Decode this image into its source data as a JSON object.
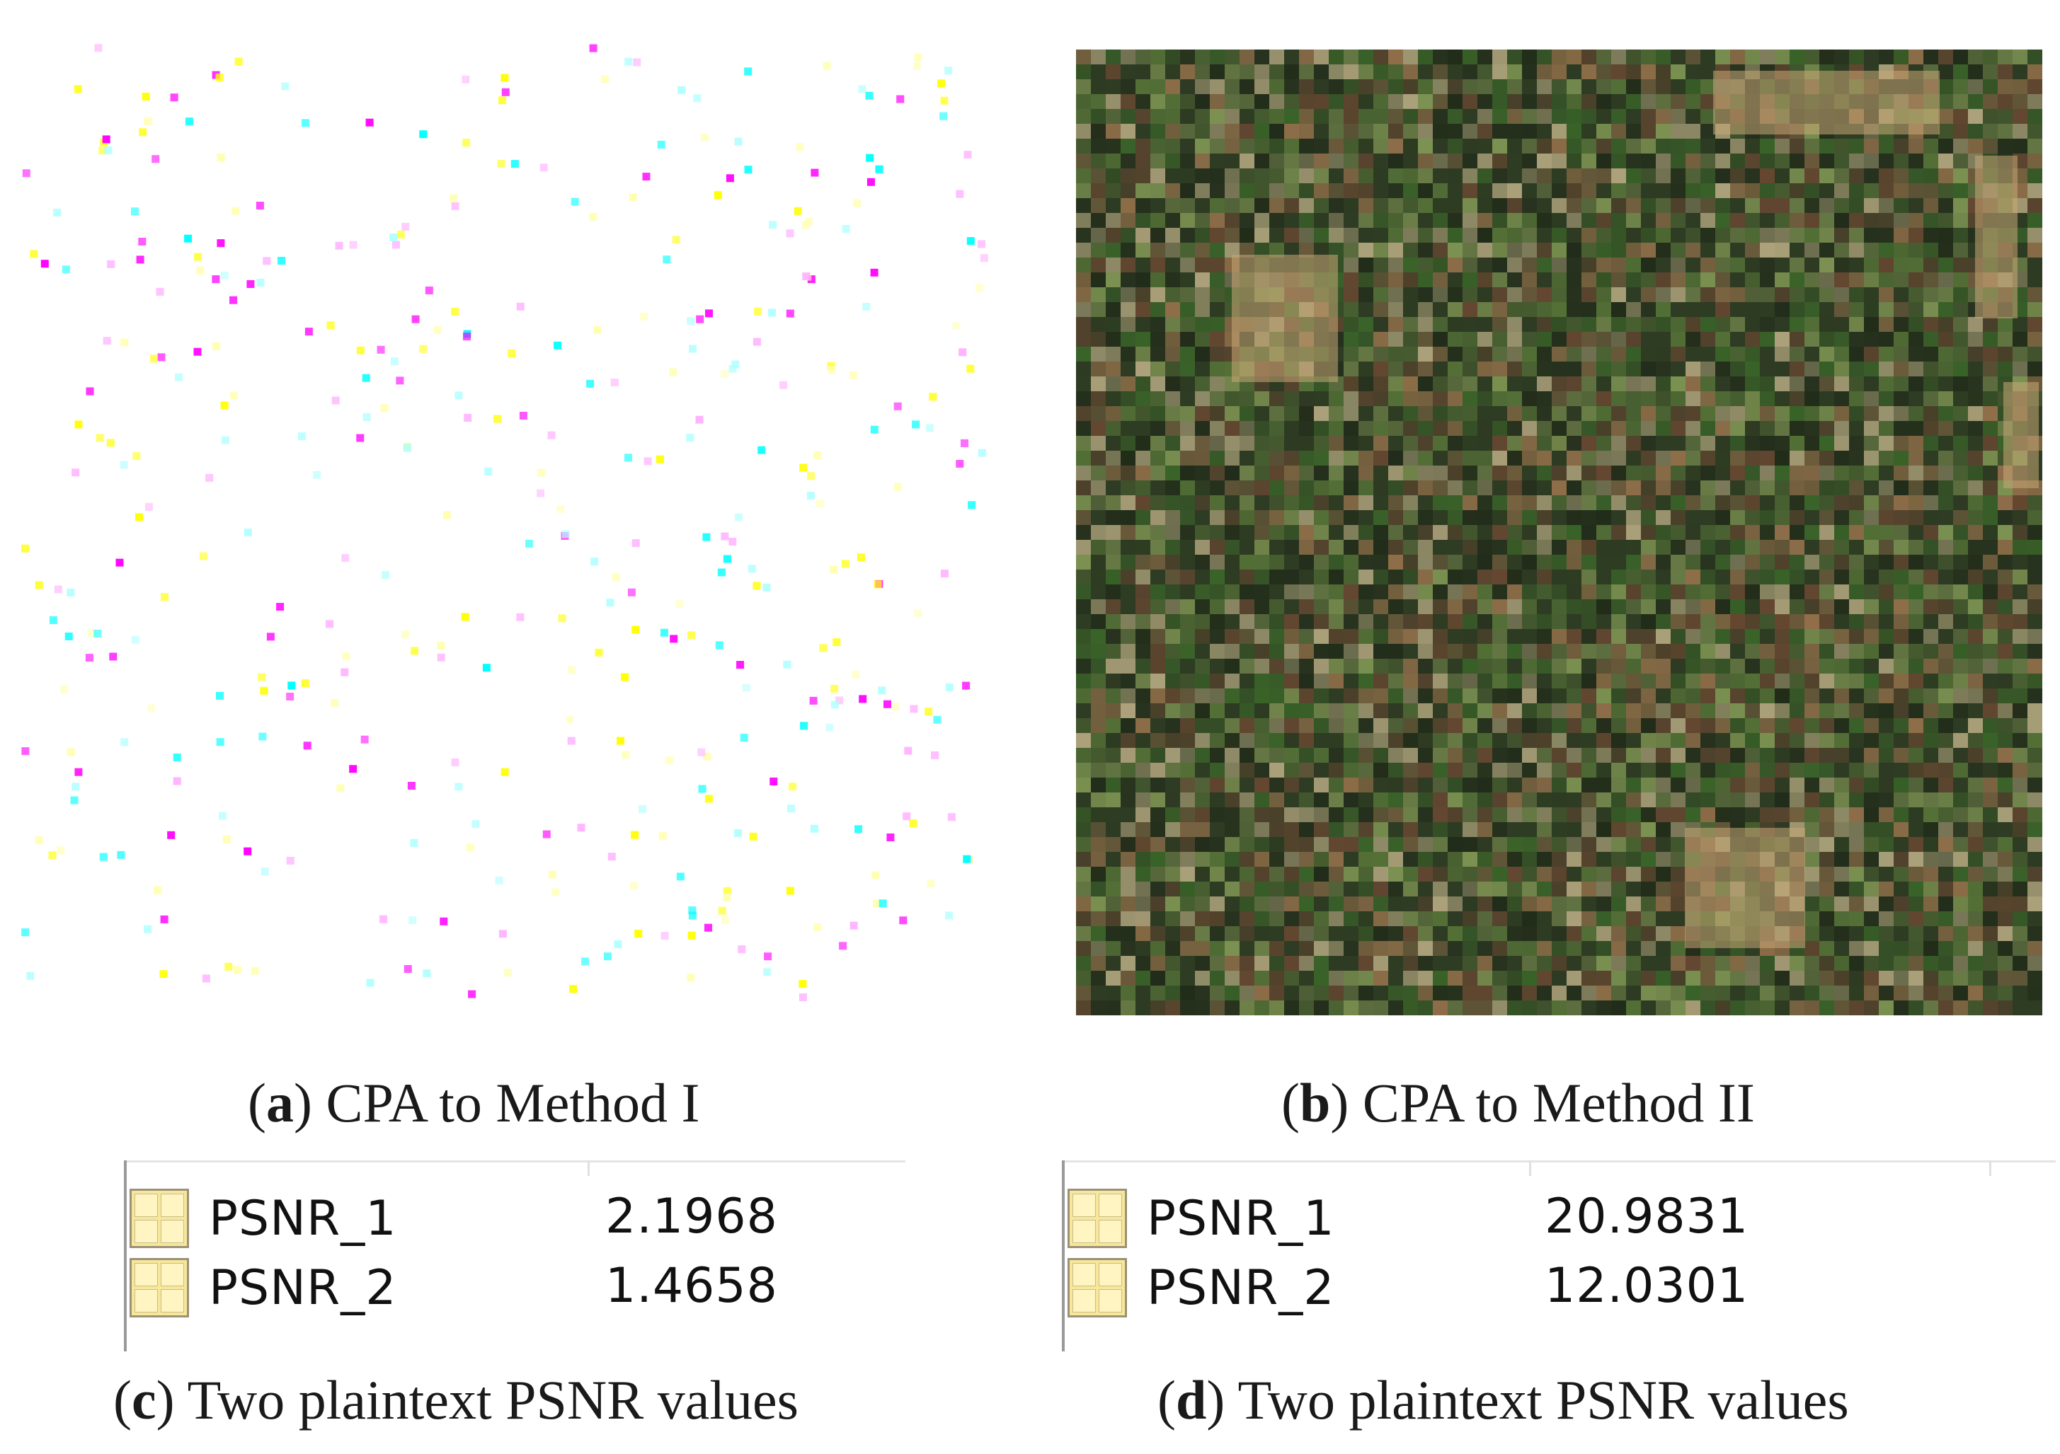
{
  "figure": {
    "panels": [
      {
        "id": "a",
        "letter": "a",
        "text": ") CPA to Method I"
      },
      {
        "id": "b",
        "letter": "b",
        "text": ") CPA to Method II"
      },
      {
        "id": "c",
        "letter": "c",
        "text": ") Two plaintext PSNR values"
      },
      {
        "id": "d",
        "letter": "d",
        "text": ") Two plaintext PSNR values"
      }
    ],
    "table_c": [
      {
        "name": "PSNR_1",
        "value": "2.1968"
      },
      {
        "name": "PSNR_2",
        "value": "1.4658"
      }
    ],
    "table_d": [
      {
        "name": "PSNR_1",
        "value": "20.9831"
      },
      {
        "name": "PSNR_2",
        "value": "12.0301"
      }
    ],
    "colors": {
      "dot_colors": [
        "#ffff00",
        "#00ffff",
        "#ff00ff",
        "#ffb3ff",
        "#b3ffff",
        "#ffffb3"
      ],
      "noise_colors": [
        "#3c6b2a",
        "#6e4a33",
        "#2d3d22",
        "#8aa25a",
        "#5a7a3a",
        "#a07850",
        "#1f2a18",
        "#c2b48a"
      ]
    },
    "icons": {
      "variable": "grid-variable-icon"
    }
  }
}
